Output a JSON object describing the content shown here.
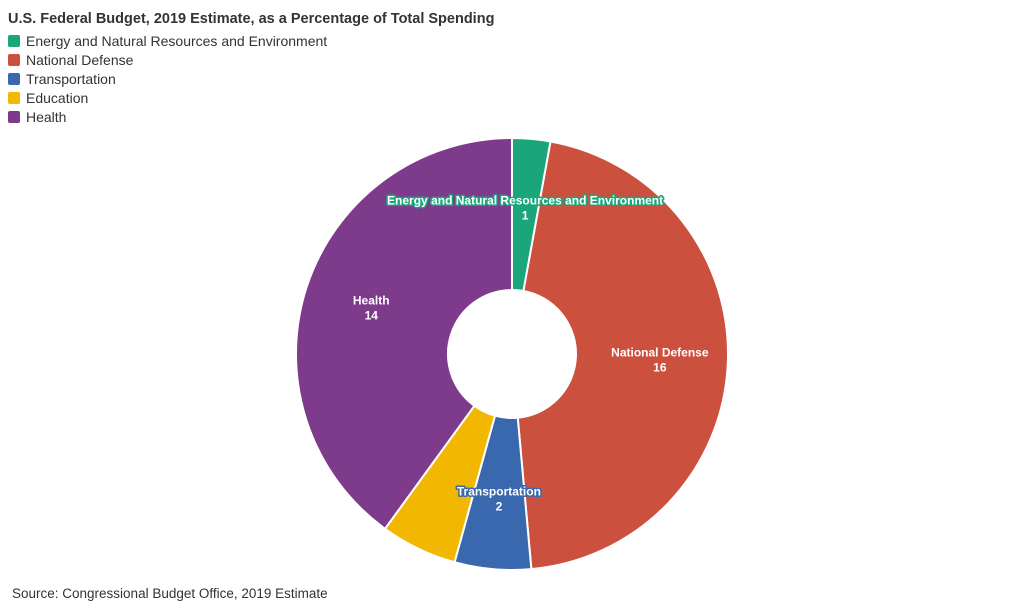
{
  "chart_data": {
    "type": "pie",
    "title": "U.S. Federal Budget, 2019 Estimate, as a Percentage of Total Spending",
    "donut": true,
    "legend_position": "top-left",
    "categories": [
      "Energy and Natural Resources and Environment",
      "National Defense",
      "Transportation",
      "Education",
      "Health"
    ],
    "values": [
      1,
      16,
      2,
      2,
      14
    ],
    "colors": [
      "#1aa67a",
      "#cc503e",
      "#3a68ae",
      "#f2b701",
      "#7e3b8c"
    ],
    "data_labels_shown": [
      true,
      true,
      true,
      false,
      true
    ]
  },
  "footer": {
    "source": "Source: Congressional Budget Office, 2019 Estimate"
  }
}
